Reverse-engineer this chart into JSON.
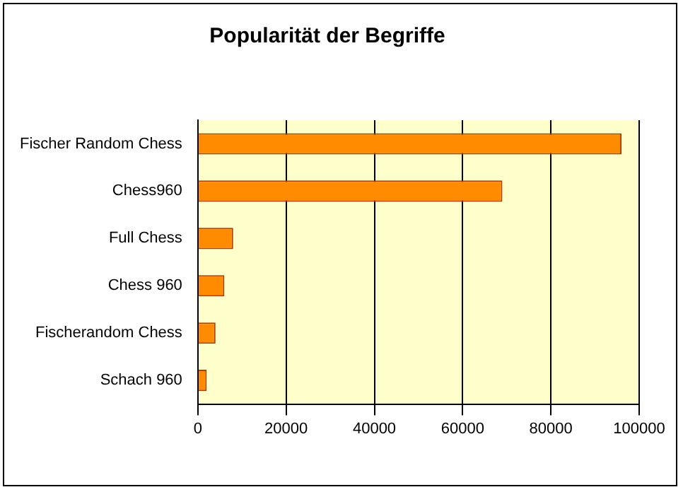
{
  "chart_data": {
    "type": "bar",
    "orientation": "horizontal",
    "title": "Popularität der Begriffe",
    "categories": [
      "Fischer Random Chess",
      "Chess960",
      "Full Chess",
      "Chess 960",
      "Fischerandom Chess",
      "Schach 960"
    ],
    "values": [
      96000,
      69000,
      8000,
      6000,
      4000,
      2000
    ],
    "color": "#ff8c00",
    "xlim": [
      0,
      100000
    ],
    "xticks": [
      0,
      20000,
      40000,
      60000,
      80000,
      100000
    ],
    "grid": "x",
    "legend": false
  }
}
